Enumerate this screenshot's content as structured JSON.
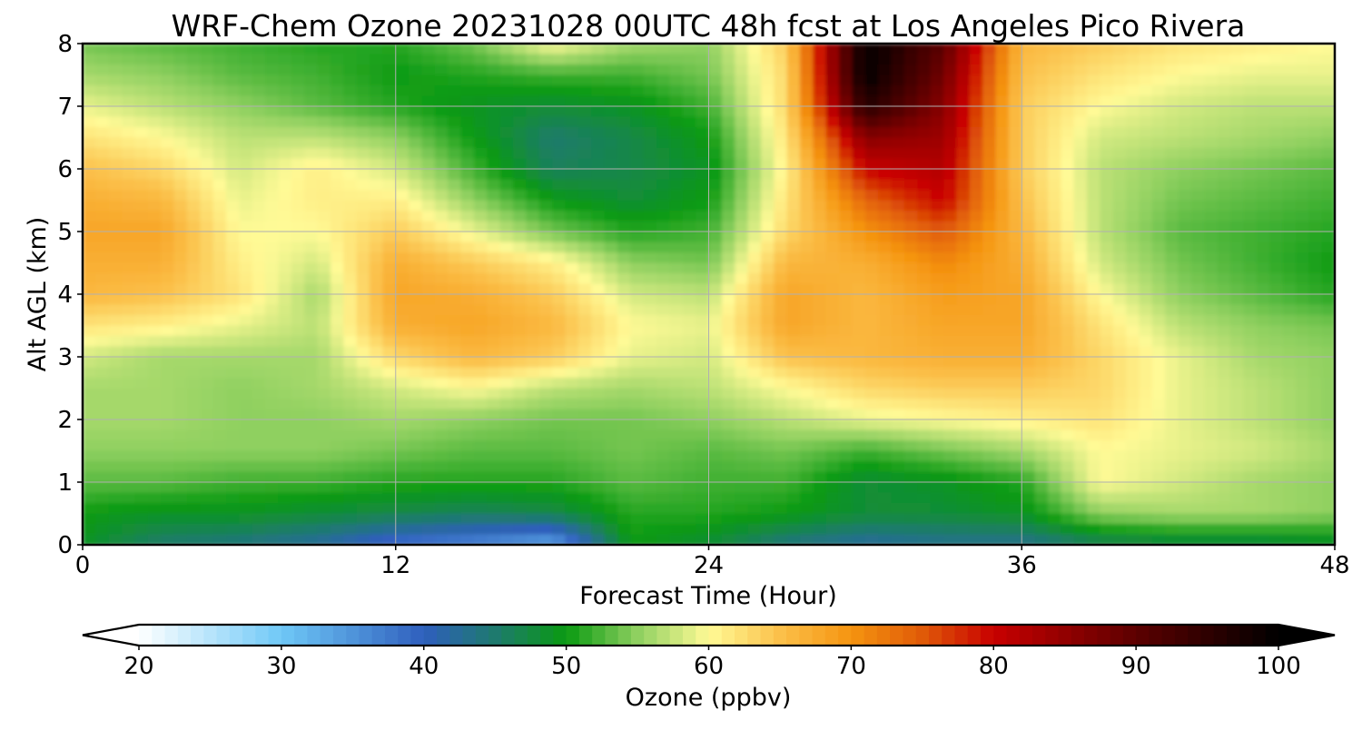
{
  "chart_data": {
    "type": "heatmap",
    "title": "WRF-Chem Ozone  20231028 00UTC 48h fcst at Los Angeles Pico Rivera",
    "xlabel": "Forecast Time (Hour)",
    "ylabel": "Alt AGL (km)",
    "xlim": [
      0,
      48
    ],
    "ylim": [
      0,
      8
    ],
    "x_ticks": [
      "0",
      "12",
      "24",
      "36",
      "48"
    ],
    "y_ticks": [
      "0",
      "1",
      "2",
      "3",
      "4",
      "5",
      "6",
      "7",
      "8"
    ],
    "grid": true,
    "colorbar": {
      "label": "Ozone  (ppbv)",
      "orientation": "horizontal",
      "position": "bottom",
      "min": 20,
      "max": 100,
      "extend": "both",
      "ticks": [
        "20",
        "30",
        "40",
        "50",
        "60",
        "70",
        "80",
        "90",
        "100"
      ],
      "stops": [
        {
          "value": 20,
          "color": "#ffffff"
        },
        {
          "value": 30,
          "color": "#6fc8f7"
        },
        {
          "value": 40,
          "color": "#2f5fbd"
        },
        {
          "value": 45,
          "color": "#1e7a6e"
        },
        {
          "value": 50,
          "color": "#0a9a12"
        },
        {
          "value": 55,
          "color": "#8fd060"
        },
        {
          "value": 60,
          "color": "#fffa96"
        },
        {
          "value": 65,
          "color": "#fbc04a"
        },
        {
          "value": 70,
          "color": "#f59410"
        },
        {
          "value": 75,
          "color": "#e05a08"
        },
        {
          "value": 80,
          "color": "#c80000"
        },
        {
          "value": 90,
          "color": "#5c0000"
        },
        {
          "value": 100,
          "color": "#000000"
        }
      ]
    },
    "x_hours": [
      0,
      3,
      6,
      9,
      12,
      15,
      18,
      21,
      24,
      27,
      30,
      33,
      36,
      39,
      42,
      45,
      48
    ],
    "y_km": [
      0,
      0.5,
      1,
      1.5,
      2,
      2.5,
      3,
      3.5,
      4,
      4.5,
      5,
      5.5,
      6,
      6.5,
      7,
      7.5,
      8
    ],
    "values": [
      [
        49,
        45,
        44,
        42,
        38,
        36,
        33,
        50,
        48,
        44,
        42,
        43,
        43,
        46,
        47,
        47,
        48
      ],
      [
        50,
        49,
        49,
        48,
        47,
        46,
        47,
        51,
        51,
        50,
        48,
        48,
        49,
        55,
        56,
        56,
        55
      ],
      [
        53,
        53,
        52,
        52,
        51,
        51,
        51,
        53,
        52,
        52,
        48,
        49,
        51,
        60,
        58,
        56,
        55
      ],
      [
        55,
        55,
        55,
        55,
        54,
        53,
        53,
        54,
        53,
        54,
        52,
        54,
        56,
        60,
        59,
        58,
        56
      ],
      [
        56,
        56,
        55,
        55,
        56,
        55,
        54,
        54,
        55,
        57,
        59,
        60,
        61,
        62,
        59,
        57,
        55
      ],
      [
        56,
        56,
        55,
        56,
        58,
        60,
        57,
        56,
        57,
        60,
        63,
        64,
        64,
        63,
        59,
        57,
        55
      ],
      [
        58,
        56,
        56,
        56,
        63,
        66,
        64,
        59,
        58,
        65,
        66,
        67,
        67,
        63,
        59,
        56,
        55
      ],
      [
        62,
        61,
        59,
        57,
        67,
        68,
        66,
        60,
        59,
        68,
        66,
        68,
        68,
        62,
        57,
        55,
        54
      ],
      [
        66,
        65,
        62,
        56,
        68,
        67,
        64,
        58,
        57,
        68,
        66,
        69,
        68,
        60,
        55,
        53,
        51
      ],
      [
        67,
        67,
        61,
        58,
        67,
        64,
        61,
        55,
        54,
        66,
        67,
        71,
        67,
        58,
        54,
        52,
        50
      ],
      [
        68,
        68,
        60,
        60,
        64,
        59,
        54,
        51,
        52,
        63,
        70,
        75,
        66,
        57,
        53,
        52,
        51
      ],
      [
        67,
        66,
        59,
        61,
        61,
        55,
        50,
        48,
        50,
        62,
        74,
        80,
        65,
        57,
        54,
        53,
        52
      ],
      [
        65,
        63,
        58,
        61,
        58,
        52,
        46,
        47,
        49,
        61,
        80,
        82,
        64,
        57,
        55,
        54,
        53
      ],
      [
        62,
        60,
        57,
        57,
        55,
        50,
        45,
        47,
        50,
        62,
        86,
        84,
        64,
        58,
        57,
        56,
        55
      ],
      [
        59,
        57,
        55,
        53,
        51,
        49,
        48,
        49,
        52,
        63,
        96,
        86,
        64,
        60,
        58,
        57,
        57
      ],
      [
        56,
        55,
        53,
        52,
        50,
        51,
        52,
        52,
        54,
        63,
        100,
        88,
        65,
        62,
        60,
        59,
        59
      ],
      [
        54,
        53,
        52,
        51,
        51,
        54,
        60,
        56,
        55,
        64,
        100,
        90,
        66,
        64,
        62,
        61,
        60
      ]
    ]
  }
}
